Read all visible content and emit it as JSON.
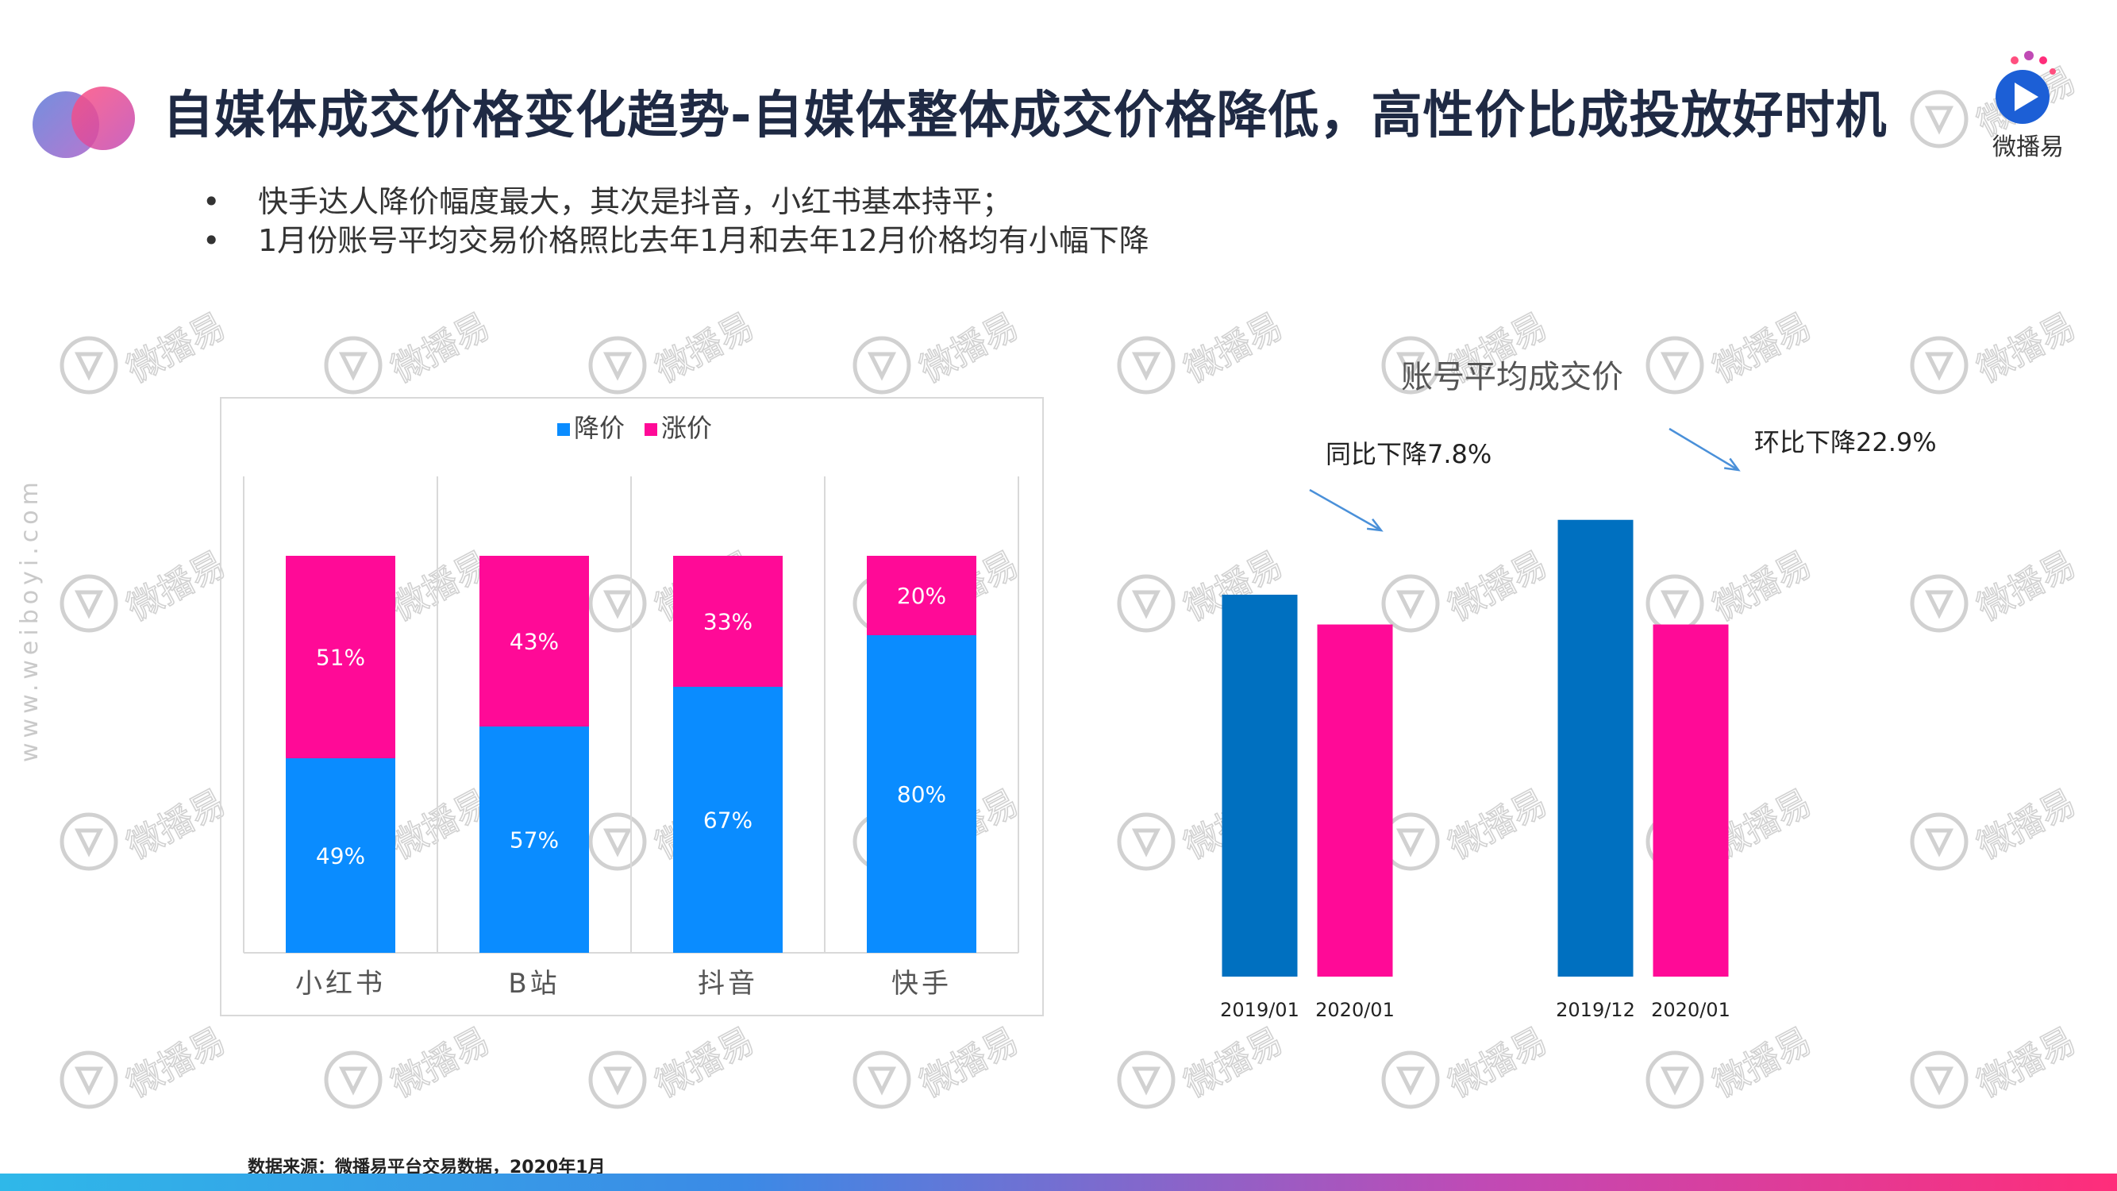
{
  "header": {
    "title": "自媒体成交价格变化趋势-自媒体整体成交价格降低，高性价比成投放好时机",
    "logo_text": "微播易"
  },
  "bullets": [
    "快手达人降价幅度最大，其次是抖音，小红书基本持平；",
    "1月份账号平均交易价格照比去年1月和去年12月价格均有小幅下降"
  ],
  "side_watermark": "www.weiboyi.com",
  "watermark_text": "微播易",
  "source_note": "数据来源：微播易平台交易数据，2020年1月",
  "colors": {
    "down": "#0a8cff",
    "up": "#ff0a97",
    "bar_dark_blue": "#0070c0",
    "bar_pink": "#ff0a97",
    "arrow": "#4a90d9"
  },
  "chart_data": [
    {
      "type": "bar",
      "stacked": true,
      "percent": true,
      "categories": [
        "小红书",
        "B站",
        "抖音",
        "快手"
      ],
      "series": [
        {
          "name": "降价",
          "values": [
            49,
            57,
            67,
            80
          ],
          "labels": [
            "49%",
            "57%",
            "67%",
            "80%"
          ]
        },
        {
          "name": "涨价",
          "values": [
            51,
            43,
            33,
            20
          ],
          "labels": [
            "51%",
            "43%",
            "33%",
            "20%"
          ]
        }
      ],
      "legend": "top-center",
      "ylim": [
        0,
        100
      ],
      "grid": false
    },
    {
      "type": "bar",
      "title": "账号平均成交价",
      "groups": [
        {
          "annotation": "同比下降7.8%",
          "bars": [
            {
              "label": "2019/01",
              "value": 100.0,
              "color": "#0070c0"
            },
            {
              "label": "2020/01",
              "value": 92.2,
              "color": "#ff0a97"
            }
          ]
        },
        {
          "annotation": "环比下降22.9%",
          "bars": [
            {
              "label": "2019/12",
              "value": 119.6,
              "color": "#0070c0"
            },
            {
              "label": "2020/01",
              "value": 92.2,
              "color": "#ff0a97"
            }
          ]
        }
      ],
      "legend": "none",
      "grid": false
    }
  ]
}
